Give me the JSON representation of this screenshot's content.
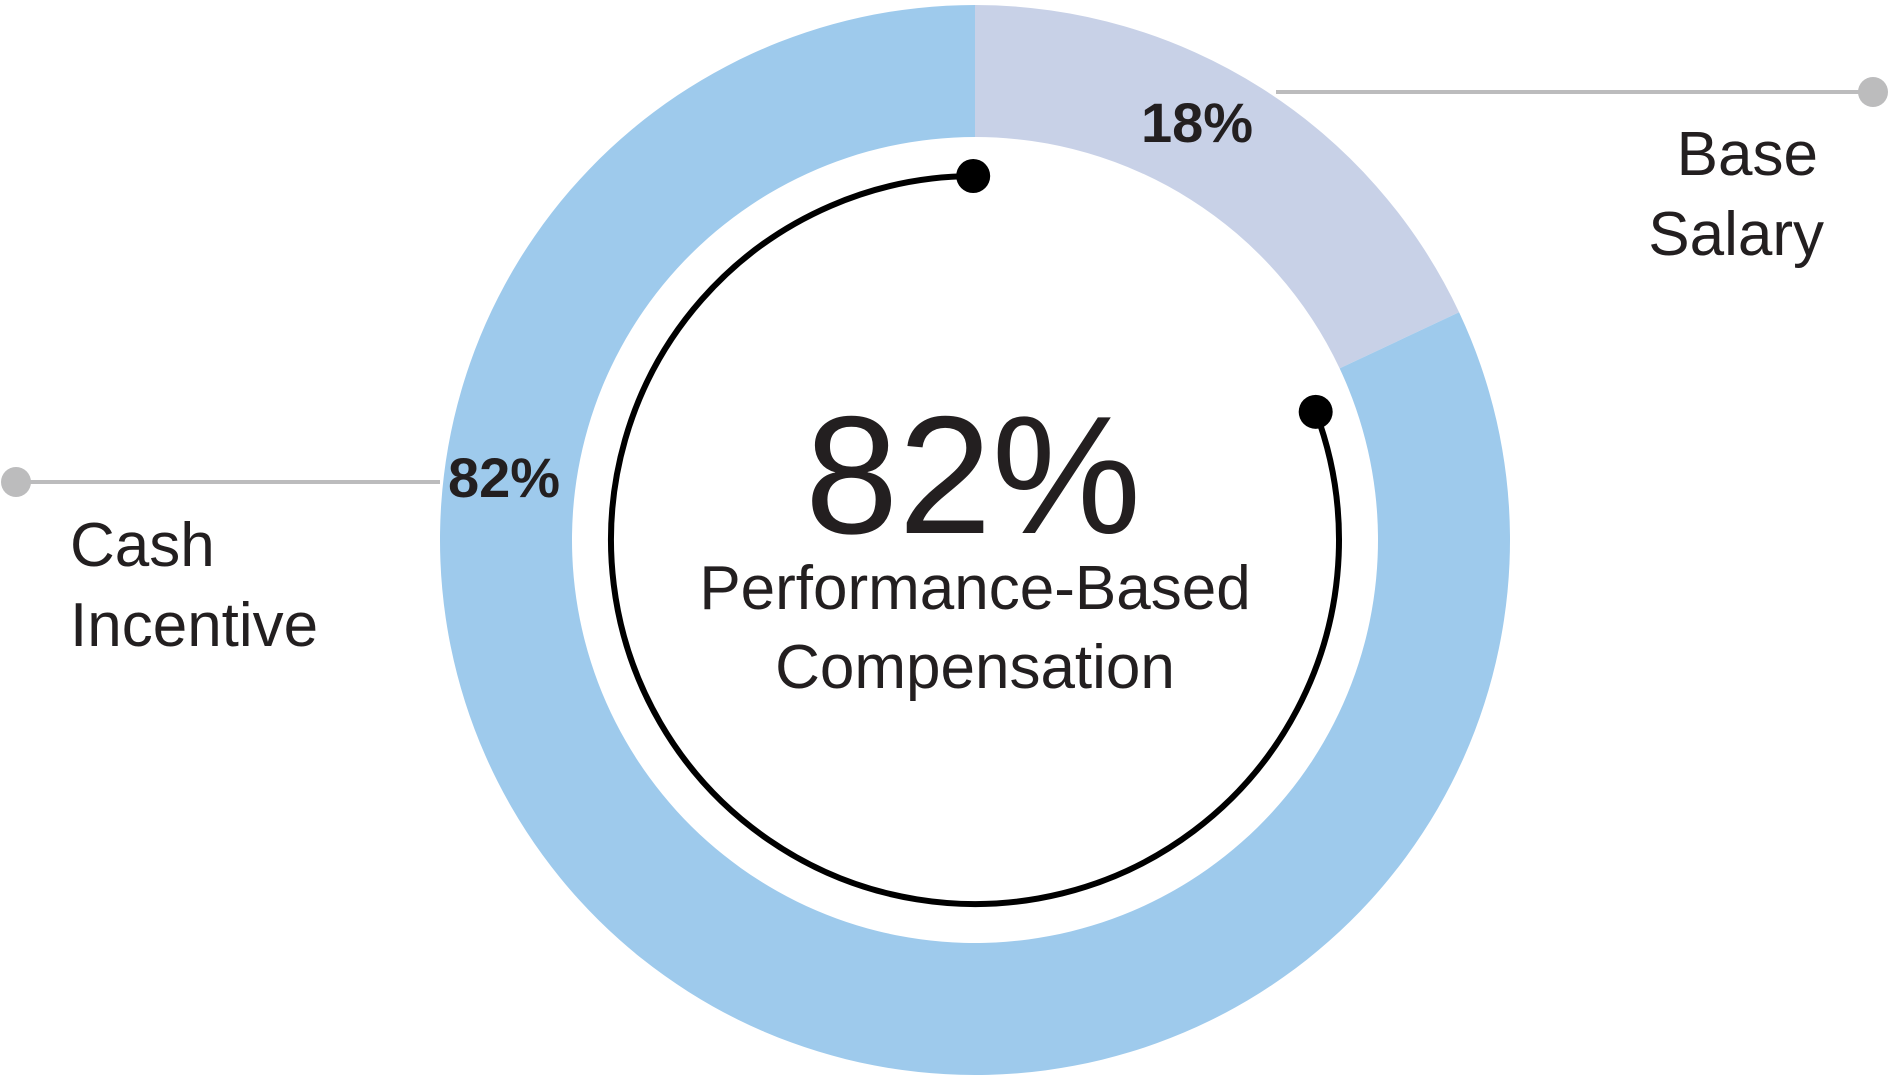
{
  "chart_data": {
    "type": "pie",
    "categories": [
      "Base Salary",
      "Cash Incentive"
    ],
    "values": [
      18,
      82
    ],
    "value_labels": [
      "18%",
      "82%"
    ],
    "legend": [
      {
        "lines": [
          "Base",
          "Salary"
        ]
      },
      {
        "lines": [
          "Cash",
          "Incentive"
        ]
      }
    ],
    "center": {
      "value": "82%",
      "lines": [
        "Performance-Based",
        "Compensation"
      ]
    },
    "donut": true
  },
  "colors": {
    "base_salary": "#c8d1e7",
    "cash_incentive": "#9ecaec",
    "leader_line": "#bcbcbd",
    "arc": "#000000",
    "text": "#231f20"
  }
}
